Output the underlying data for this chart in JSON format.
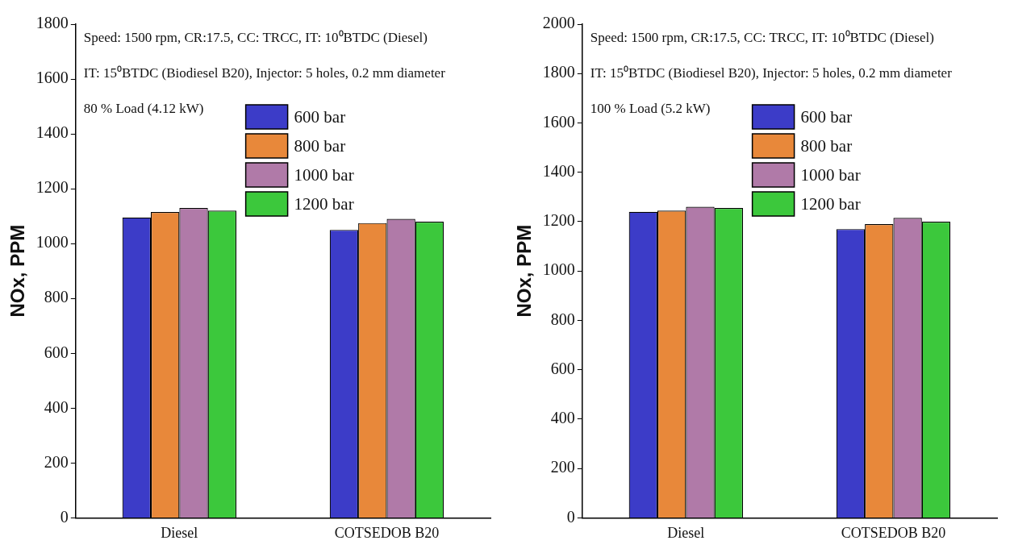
{
  "chart_data": [
    {
      "type": "bar",
      "ylabel": "NOx, PPM",
      "categories": [
        "Diesel",
        "COTSEDOB B20"
      ],
      "series": [
        {
          "name": "600 bar",
          "color": "#3c3cc8",
          "values": [
            1095,
            1050
          ]
        },
        {
          "name": "800 bar",
          "color": "#e8883a",
          "values": [
            1115,
            1075
          ]
        },
        {
          "name": "1000 bar",
          "color": "#b07aa8",
          "values": [
            1130,
            1090
          ]
        },
        {
          "name": "1200 bar",
          "color": "#3cc83c",
          "values": [
            1120,
            1080
          ]
        }
      ],
      "ylim": [
        0,
        1800
      ],
      "yticks": [
        0,
        200,
        400,
        600,
        800,
        1000,
        1200,
        1400,
        1600,
        1800
      ],
      "grid": false,
      "legend": "top",
      "annotations": [
        "Speed: 1500 rpm, CR:17.5, CC: TRCC, IT: 10⁰BTDC (Diesel)",
        "IT: 15⁰BTDC (Biodiesel B20), Injector: 5 holes, 0.2 mm diameter",
        "80 % Load (4.12 kW)"
      ]
    },
    {
      "type": "bar",
      "ylabel": "NOx, PPM",
      "categories": [
        "Diesel",
        "COTSEDOB B20"
      ],
      "series": [
        {
          "name": "600 bar",
          "color": "#3c3cc8",
          "values": [
            1240,
            1170
          ]
        },
        {
          "name": "800 bar",
          "color": "#e8883a",
          "values": [
            1245,
            1190
          ]
        },
        {
          "name": "1000 bar",
          "color": "#b07aa8",
          "values": [
            1260,
            1215
          ]
        },
        {
          "name": "1200 bar",
          "color": "#3cc83c",
          "values": [
            1255,
            1200
          ]
        }
      ],
      "ylim": [
        0,
        2000
      ],
      "yticks": [
        0,
        200,
        400,
        600,
        800,
        1000,
        1200,
        1400,
        1600,
        1800,
        2000
      ],
      "grid": false,
      "legend": "top",
      "annotations": [
        "Speed: 1500 rpm, CR:17.5, CC: TRCC, IT: 10⁰BTDC (Diesel)",
        "IT: 15⁰BTDC (Biodiesel B20), Injector: 5 holes, 0.2 mm diameter",
        "100 % Load (5.2 kW)"
      ]
    }
  ]
}
